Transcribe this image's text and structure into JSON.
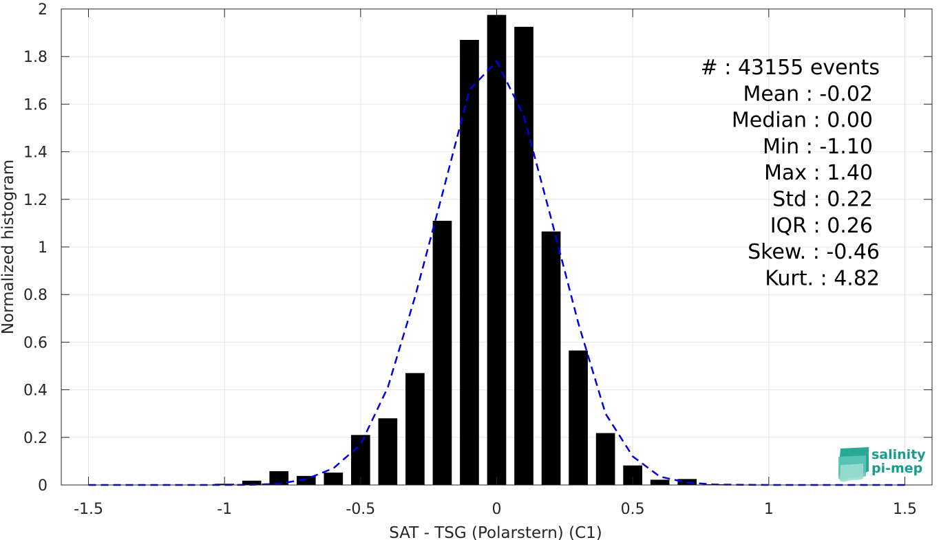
{
  "chart_data": {
    "type": "bar",
    "xlabel": "SAT - TSG (Polarstern) (C1)",
    "ylabel": "Normalized histogram",
    "xlim": [
      -1.6,
      1.6
    ],
    "ylim": [
      0,
      2
    ],
    "xticks": [
      -1.5,
      -1,
      -0.5,
      0,
      0.5,
      1,
      1.5
    ],
    "xtick_labels": [
      "-1.5",
      "-1",
      "-0.5",
      "0",
      "0.5",
      "1",
      "1.5"
    ],
    "yticks": [
      0,
      0.2,
      0.4,
      0.6,
      0.8,
      1,
      1.2,
      1.4,
      1.6,
      1.8,
      2
    ],
    "ytick_labels": [
      "0",
      "0.2",
      "0.4",
      "0.6",
      "0.8",
      "1",
      "1.2",
      "1.4",
      "1.6",
      "1.8",
      "2"
    ],
    "grid": true,
    "bar_width": 0.07,
    "bars": [
      {
        "x": -1.0,
        "y": 0.005
      },
      {
        "x": -0.9,
        "y": 0.018
      },
      {
        "x": -0.8,
        "y": 0.058
      },
      {
        "x": -0.7,
        "y": 0.038
      },
      {
        "x": -0.6,
        "y": 0.052
      },
      {
        "x": -0.5,
        "y": 0.21
      },
      {
        "x": -0.4,
        "y": 0.28
      },
      {
        "x": -0.3,
        "y": 0.47
      },
      {
        "x": -0.2,
        "y": 1.11
      },
      {
        "x": -0.1,
        "y": 1.87
      },
      {
        "x": 0.0,
        "y": 1.975
      },
      {
        "x": 0.1,
        "y": 1.925
      },
      {
        "x": 0.2,
        "y": 1.065
      },
      {
        "x": 0.3,
        "y": 0.565
      },
      {
        "x": 0.4,
        "y": 0.218
      },
      {
        "x": 0.5,
        "y": 0.082
      },
      {
        "x": 0.6,
        "y": 0.022
      },
      {
        "x": 0.7,
        "y": 0.025
      },
      {
        "x": 0.8,
        "y": 0.003
      }
    ],
    "fit_line": {
      "style": "dashed",
      "color": "#0000e6",
      "x": [
        -1.5,
        -1.4,
        -1.3,
        -1.2,
        -1.1,
        -1.0,
        -0.9,
        -0.8,
        -0.7,
        -0.6,
        -0.5,
        -0.4,
        -0.3,
        -0.2,
        -0.1,
        0.0,
        0.1,
        0.2,
        0.3,
        0.4,
        0.5,
        0.6,
        0.7,
        0.8,
        0.9,
        1.0,
        1.1,
        1.2,
        1.3,
        1.4,
        1.5
      ],
      "y": [
        0,
        0,
        0,
        0,
        0,
        0,
        0.001,
        0.005,
        0.025,
        0.07,
        0.17,
        0.41,
        0.79,
        1.22,
        1.66,
        1.78,
        1.55,
        1.12,
        0.68,
        0.3,
        0.12,
        0.035,
        0.01,
        0.002,
        0.001,
        0,
        0,
        0,
        0,
        0,
        0
      ]
    },
    "annotations": [
      "#  : 43155 events",
      "Mean : -0.02",
      "Median : 0.00",
      "Min : -1.10",
      "Max : 1.40",
      "Std : 0.22",
      "IQR : 0.26",
      "Skew. : -0.46",
      "Kurt. : 4.82"
    ],
    "colors": {
      "bar": "#000000",
      "grid": "#e6e6e6",
      "axis": "#262626"
    }
  },
  "logo": {
    "line1": "salinity",
    "line2": "pi-mep",
    "color": "#1a9c8c"
  }
}
